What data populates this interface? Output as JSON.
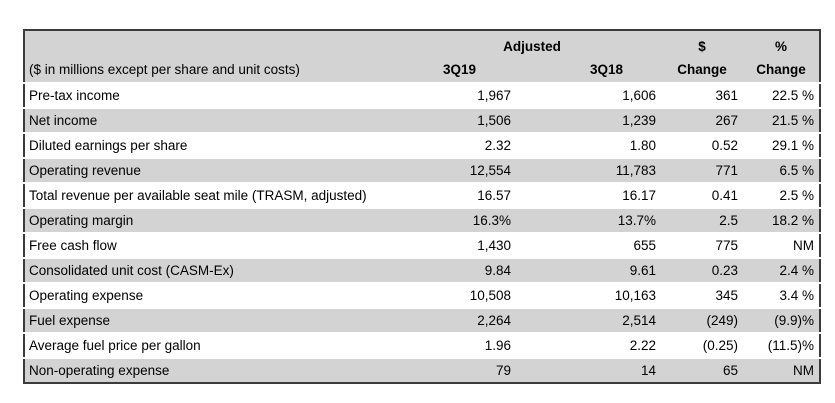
{
  "table": {
    "note": "($ in millions except per share and unit costs)",
    "group_header": "Adjusted",
    "columns": {
      "q19_label": "3Q19",
      "q18_label": "3Q18",
      "dollar_change_top": "$",
      "dollar_change_bottom": "Change",
      "pct_change_top": "%",
      "pct_change_bottom": "Change"
    },
    "rows": [
      {
        "label": "Pre-tax income",
        "q3_19": "1,967",
        "q3_18": "1,606",
        "dollar_change": "361",
        "pct_change": "22.5 %"
      },
      {
        "label": "Net income",
        "q3_19": "1,506",
        "q3_18": "1,239",
        "dollar_change": "267",
        "pct_change": "21.5 %"
      },
      {
        "label": "Diluted earnings per share",
        "q3_19": "2.32",
        "q3_18": "1.80",
        "dollar_change": "0.52",
        "pct_change": "29.1 %"
      },
      {
        "label": "Operating revenue",
        "q3_19": "12,554",
        "q3_18": "11,783",
        "dollar_change": "771",
        "pct_change": "6.5 %"
      },
      {
        "label": "Total revenue per available seat mile (TRASM, adjusted)",
        "q3_19": "16.57",
        "q3_18": "16.17",
        "dollar_change": "0.41",
        "pct_change": "2.5 %"
      },
      {
        "label": "Operating margin",
        "q3_19": "16.3%",
        "q3_18": "13.7%",
        "dollar_change": "2.5",
        "pct_change": "18.2 %"
      },
      {
        "label": "Free cash flow",
        "q3_19": "1,430",
        "q3_18": "655",
        "dollar_change": "775",
        "pct_change": "NM"
      },
      {
        "label": "Consolidated unit cost (CASM-Ex)",
        "q3_19": "9.84",
        "q3_18": "9.61",
        "dollar_change": "0.23",
        "pct_change": "2.4 %"
      },
      {
        "label": "Operating expense",
        "q3_19": "10,508",
        "q3_18": "10,163",
        "dollar_change": "345",
        "pct_change": "3.4 %"
      },
      {
        "label": "Fuel expense",
        "q3_19": "2,264",
        "q3_18": "2,514",
        "dollar_change": "(249)",
        "pct_change": "(9.9)%"
      },
      {
        "label": "Average fuel price per gallon",
        "q3_19": "1.96",
        "q3_18": "2.22",
        "dollar_change": "(0.25)",
        "pct_change": "(11.5)%"
      },
      {
        "label": "Non-operating expense",
        "q3_19": "79",
        "q3_18": "14",
        "dollar_change": "65",
        "pct_change": "NM"
      }
    ]
  },
  "colors": {
    "header_and_stripe_gray": "#d3d3d3",
    "row_separator": "#ffffff",
    "outer_border": "#3b3b3b",
    "text": "#000000"
  }
}
